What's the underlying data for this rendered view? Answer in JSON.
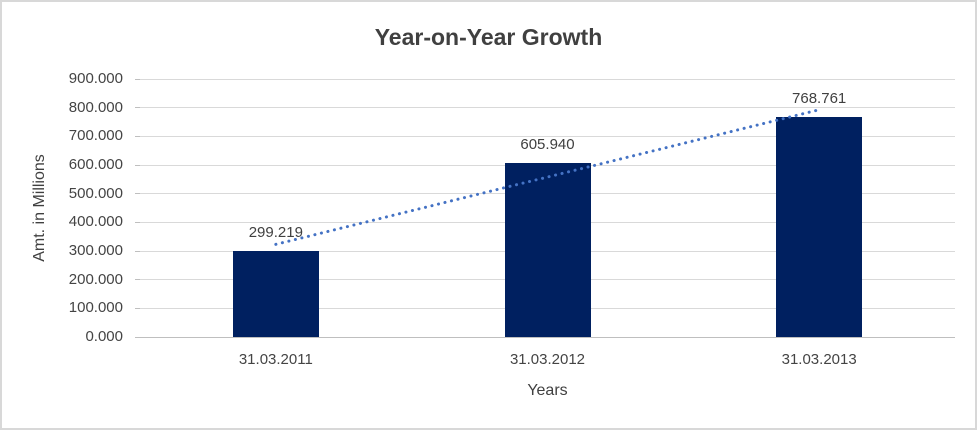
{
  "window": {
    "title": "Year-on-Year Growth"
  },
  "chart_data": {
    "type": "bar",
    "title": "Year-on-Year Growth",
    "categories": [
      "31.03.2011",
      "31.03.2012",
      "31.03.2013"
    ],
    "values": [
      299.219,
      605.94,
      768.761
    ],
    "data_labels": [
      "299.219",
      "605.940",
      "768.761"
    ],
    "xlabel": "Years",
    "ylabel": "Amt. in Millions",
    "ylim": [
      0,
      900
    ],
    "ytick_step": 100,
    "ytick_labels": [
      "0.000",
      "100.000",
      "200.000",
      "300.000",
      "400.000",
      "500.000",
      "600.000",
      "700.000",
      "800.000",
      "900.000"
    ],
    "grid": true,
    "legend": "none",
    "bar_color": "#002060",
    "trendline": {
      "type": "linear",
      "style": "dotted",
      "color": "#4472c4"
    },
    "gridline_color": "#d9d9d9",
    "axis_line_color": "#bfbfbf",
    "text_color": "#404040",
    "frame_border_color": "#d8d8d8"
  }
}
